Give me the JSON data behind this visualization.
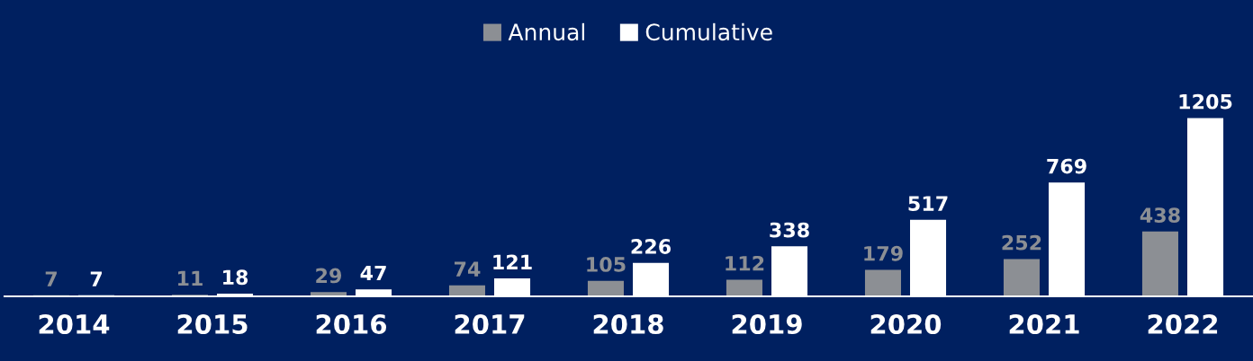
{
  "chart_data": {
    "type": "bar",
    "categories": [
      "2014",
      "2015",
      "2016",
      "2017",
      "2018",
      "2019",
      "2020",
      "2021",
      "2022"
    ],
    "series": [
      {
        "name": "Annual",
        "color": "#8c8f94",
        "values": [
          7,
          11,
          29,
          74,
          105,
          112,
          179,
          252,
          438
        ]
      },
      {
        "name": "Cumulative",
        "color": "#ffffff",
        "values": [
          7,
          18,
          47,
          121,
          226,
          338,
          517,
          769,
          1205
        ]
      }
    ],
    "data_labels": true,
    "legend": "top",
    "grid": false
  }
}
